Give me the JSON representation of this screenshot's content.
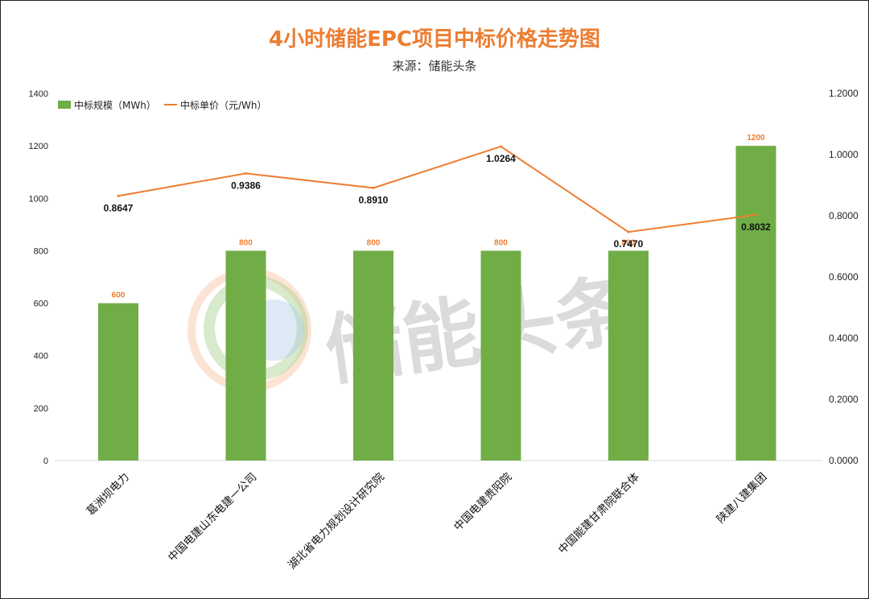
{
  "chart_data": {
    "type": "bar",
    "title": "4小时储能EPC项目中标价格走势图",
    "subtitle": "来源：储能头条",
    "categories": [
      "葛洲坝电力",
      "中国电建山东电建一公司",
      "湖北省电力规划设计研究院",
      "中国电建贵阳院",
      "中国能建甘肃院联合体",
      "陕建八建集团"
    ],
    "series": [
      {
        "name": "中标规模（MWh）",
        "type": "bar",
        "axis": "left",
        "color": "#70AD47",
        "values": [
          600,
          800,
          800,
          800,
          800,
          1200
        ],
        "labels": [
          "600",
          "800",
          "800",
          "800",
          "800",
          "1200"
        ]
      },
      {
        "name": "中标单价（元/Wh）",
        "type": "line",
        "axis": "right",
        "color": "#ED7D31",
        "values": [
          0.8647,
          0.9386,
          0.891,
          1.0264,
          0.747,
          0.8032
        ],
        "labels": [
          "0.8647",
          "0.9386",
          "0.8910",
          "1.0264",
          "0.7470",
          "0.8032"
        ]
      }
    ],
    "y_left": {
      "min": 0,
      "max": 1400,
      "ticks": [
        "0",
        "200",
        "400",
        "600",
        "800",
        "1000",
        "1200",
        "1400"
      ]
    },
    "y_right": {
      "min": 0,
      "max": 1.2,
      "ticks": [
        "0.0000",
        "0.2000",
        "0.4000",
        "0.6000",
        "0.8000",
        "1.0000",
        "1.2000"
      ]
    },
    "legend_position": "top-left",
    "grid": false,
    "watermark": "储能头条"
  }
}
